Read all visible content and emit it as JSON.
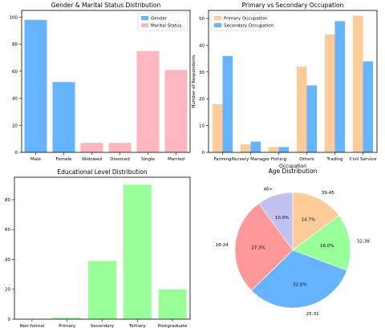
{
  "chart_data": [
    {
      "type": "bar",
      "title": "Gender & Marital Status Distribution",
      "xlabel": "",
      "ylabel": "",
      "categories": [
        "Male",
        "Female",
        "Widowed",
        "Divorced",
        "Single",
        "Married"
      ],
      "series": [
        {
          "name": "Gender",
          "color": "#66b3ff",
          "values": [
            98,
            52,
            null,
            null,
            null,
            null
          ]
        },
        {
          "name": "Marital Status",
          "color": "#ffb6c1",
          "values": [
            null,
            null,
            7,
            7,
            75,
            61
          ]
        }
      ],
      "ylim": [
        0,
        105
      ],
      "yticks": [
        0,
        20,
        40,
        60,
        80,
        100
      ],
      "legend": "top-right"
    },
    {
      "type": "bar",
      "title": "Primary vs Secondary Occupation",
      "xlabel": "Occupation",
      "ylabel": "Number of Respondents",
      "categories": [
        "Farming",
        "Nursery Manager",
        "Fishing",
        "Others",
        "Trading",
        "Civil Service"
      ],
      "series": [
        {
          "name": "Primary Occupation",
          "color": "#ffcc99",
          "values": [
            18,
            3,
            2,
            32,
            44,
            51
          ]
        },
        {
          "name": "Secondary Occupation",
          "color": "#66b3ff",
          "values": [
            36,
            4,
            2,
            25,
            49,
            34
          ]
        }
      ],
      "ylim": [
        0,
        53
      ],
      "yticks": [
        0,
        10,
        20,
        30,
        40,
        50
      ],
      "legend": "top-left"
    },
    {
      "type": "bar",
      "title": "Educational Level Distribution",
      "xlabel": "",
      "ylabel": "",
      "categories": [
        "Non-formal",
        "Primary",
        "Secondary",
        "Tertiary",
        "Postgraduate"
      ],
      "series": [
        {
          "name": "",
          "color": "#99ff99",
          "values": [
            0,
            1,
            39,
            90,
            20
          ]
        }
      ],
      "ylim": [
        0,
        95
      ],
      "yticks": [
        0,
        20,
        40,
        60,
        80
      ]
    },
    {
      "type": "pie",
      "title": "Age Distribution",
      "labels": [
        "39-45",
        "32-38",
        "25-31",
        "18-24",
        "46+"
      ],
      "values": [
        14.7,
        16.0,
        32.0,
        27.3,
        10.0
      ],
      "percent_labels": [
        "14.7%",
        "16.0%",
        "32.0%",
        "27.3%",
        "10.0%"
      ],
      "colors": [
        "#ffcc99",
        "#99ff99",
        "#66b3ff",
        "#ff9999",
        "#c2c2f0"
      ]
    }
  ]
}
